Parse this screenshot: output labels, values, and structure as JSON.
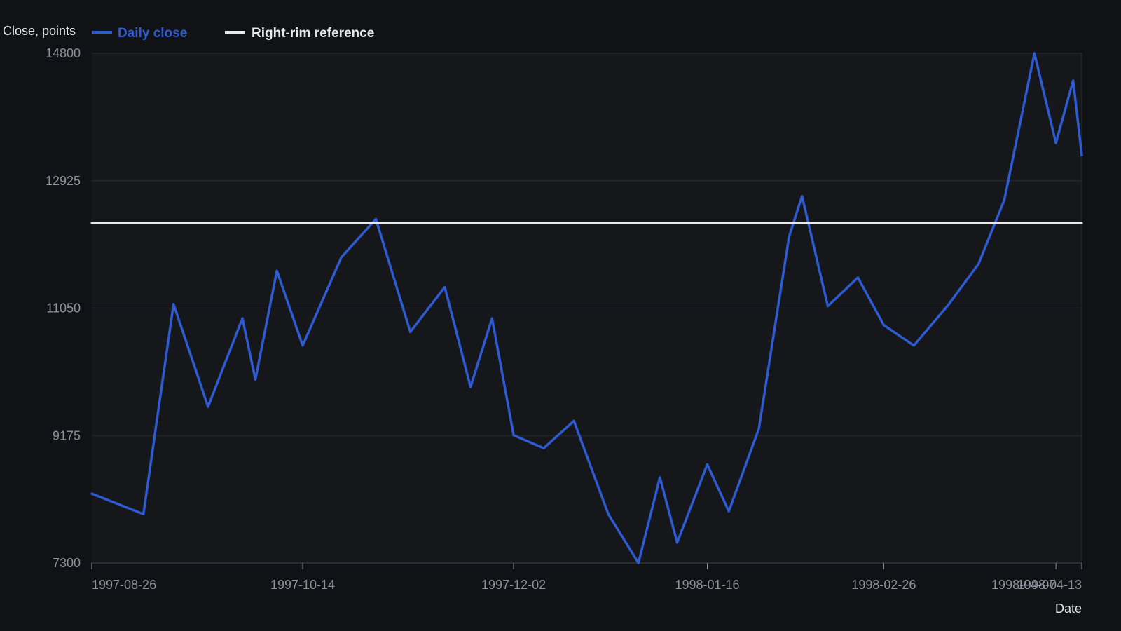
{
  "chart_data": {
    "type": "line",
    "ylabel": "Close, points",
    "xlabel": "Date",
    "ylim": [
      7300,
      14800
    ],
    "yticks": [
      7300,
      9175,
      11050,
      12925,
      14800
    ],
    "xlim": [
      "1997-08-26",
      "1998-04-13"
    ],
    "xticks": [
      "1997-08-26",
      "1997-10-14",
      "1997-12-02",
      "1998-01-16",
      "1998-02-26",
      "1998-04-07",
      "1998-04-13"
    ],
    "grid": "horizontal",
    "legend_position": "top-left",
    "series": [
      {
        "name": "Daily close",
        "color": "#2e5bd1",
        "x": [
          "1997-08-26",
          "1997-09-07",
          "1997-09-14",
          "1997-09-22",
          "1997-09-30",
          "1997-10-03",
          "1997-10-08",
          "1997-10-14",
          "1997-10-23",
          "1997-10-31",
          "1997-11-08",
          "1997-11-16",
          "1997-11-22",
          "1997-11-27",
          "1997-12-02",
          "1997-12-09",
          "1997-12-16",
          "1997-12-24",
          "1997-12-31",
          "1998-01-05",
          "1998-01-09",
          "1998-01-16",
          "1998-01-21",
          "1998-01-28",
          "1998-02-04",
          "1998-02-07",
          "1998-02-13",
          "1998-02-20",
          "1998-02-26",
          "1998-03-05",
          "1998-03-13",
          "1998-03-20",
          "1998-03-26",
          "1998-04-02",
          "1998-04-07",
          "1998-04-11",
          "1998-04-13"
        ],
        "values": [
          8320,
          8020,
          11110,
          9600,
          10900,
          10000,
          11600,
          10500,
          11800,
          12360,
          10700,
          11360,
          9890,
          10900,
          9180,
          8990,
          9390,
          8020,
          7300,
          8560,
          7600,
          8750,
          8060,
          9280,
          12100,
          12700,
          11080,
          11500,
          10800,
          10500,
          11100,
          11700,
          12640,
          14800,
          13480,
          14400,
          13300
        ]
      },
      {
        "name": "Right-rim reference",
        "color": "#e8e8e8",
        "x": [
          "1997-08-26",
          "1998-04-13"
        ],
        "values": [
          12300,
          12300
        ]
      }
    ]
  }
}
